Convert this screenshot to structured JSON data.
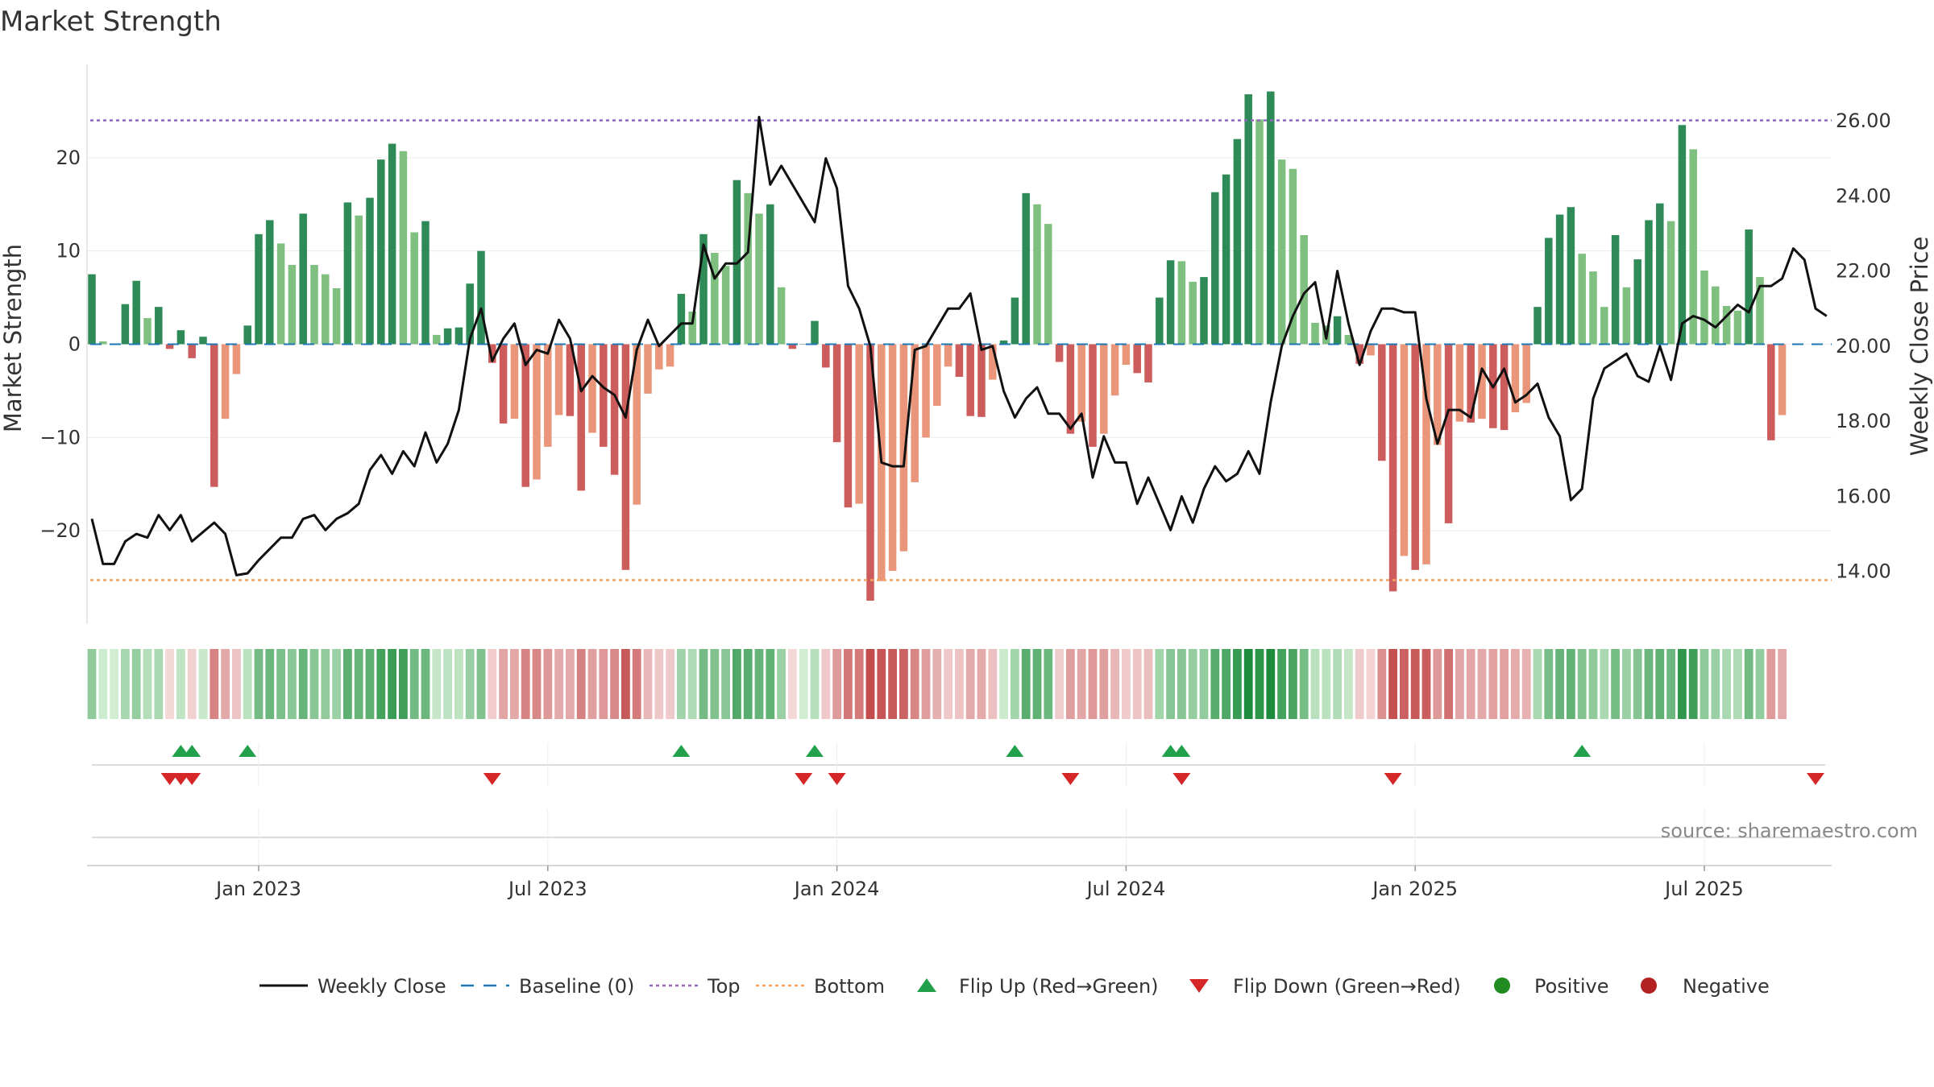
{
  "chart_data": {
    "type": "bar",
    "title": "Market Strength",
    "ylabel": "Market Strength",
    "y2label": "Weekly Close Price",
    "ylim": [
      -30,
      30
    ],
    "y2lim": [
      12.6,
      27.5
    ],
    "yticks": [
      -20,
      -10,
      0,
      10,
      20
    ],
    "yticklabels": [
      "−20",
      "−10",
      "0",
      "10",
      "20"
    ],
    "y2ticks": [
      14,
      16,
      18,
      20,
      22,
      24,
      26
    ],
    "y2ticklabels": [
      "14.00",
      "16.00",
      "18.00",
      "20.00",
      "22.00",
      "24.00",
      "26.00"
    ],
    "top_line": 24,
    "bottom_line": -25.3,
    "xticklabels": [
      "Jan 2023",
      "Jul 2023",
      "Jan 2024",
      "Jul 2024",
      "Jan 2025",
      "Jul 2025"
    ],
    "xtick_weeks": [
      15,
      41,
      67,
      93,
      119,
      145
    ],
    "strength": [
      7.5,
      0.3,
      0,
      4.3,
      6.8,
      2.8,
      4,
      -0.5,
      1.5,
      -1.5,
      0.8,
      -15.3,
      -8,
      -3.2,
      2,
      11.8,
      13.3,
      10.8,
      8.5,
      14,
      8.5,
      7.5,
      6,
      15.2,
      13.8,
      15.7,
      19.8,
      21.5,
      20.7,
      12,
      13.2,
      1,
      1.7,
      1.8,
      6.5,
      10,
      -2,
      -8.5,
      -8,
      -15.3,
      -14.5,
      -11,
      -7.6,
      -7.7,
      -15.7,
      -9.5,
      -11,
      -14,
      -24.2,
      -17.2,
      -5.3,
      -2.7,
      -2.4,
      5.4,
      3.5,
      11.8,
      9.8,
      8.4,
      17.6,
      16.2,
      14,
      15,
      6.1,
      -0.5,
      0,
      2.5,
      -2.5,
      -10.5,
      -17.5,
      -17.1,
      -27.5,
      -25.4,
      -24.3,
      -22.2,
      -14.8,
      -10,
      -6.6,
      -2.4,
      -3.5,
      -7.7,
      -7.8,
      -3.8,
      0.4,
      5,
      16.2,
      15,
      12.9,
      -1.9,
      -9.6,
      -8.3,
      -11,
      -9.6,
      -5.5,
      -2.2,
      -3.1,
      -4.1,
      5,
      9,
      8.9,
      6.7,
      7.2,
      16.3,
      18.2,
      22,
      26.8,
      24.1,
      27.1,
      19.8,
      18.8,
      11.7,
      2.3,
      2,
      3,
      1,
      -2.1,
      -1.2,
      -12.5,
      -26.5,
      -22.7,
      -24.2,
      -23.6,
      -10.8,
      -19.2,
      -8.3,
      -8.4,
      -8,
      -9,
      -9.2,
      -7.3,
      -6.3,
      4,
      11.4,
      13.9,
      14.7,
      9.7,
      7.8,
      4,
      11.7,
      6.1,
      9.1,
      13.3,
      15.1,
      13.2,
      23.5,
      20.9,
      7.9,
      6.2,
      4.1,
      3.6,
      12.3,
      7.2,
      -10.3,
      -7.6
    ],
    "close": [
      15.4,
      14.2,
      14.2,
      14.8,
      15,
      14.9,
      15.5,
      15.1,
      15.5,
      14.8,
      15.05,
      15.3,
      15,
      13.9,
      13.95,
      14.3,
      14.6,
      14.9,
      14.9,
      15.4,
      15.5,
      15.1,
      15.4,
      15.55,
      15.8,
      16.7,
      17.1,
      16.6,
      17.2,
      16.8,
      17.7,
      16.9,
      17.4,
      18.3,
      20.2,
      21,
      19.6,
      20.2,
      20.6,
      19.5,
      19.9,
      19.8,
      20.7,
      20.2,
      18.8,
      19.2,
      18.9,
      18.7,
      18.1,
      19.9,
      20.7,
      20,
      20.3,
      20.6,
      20.6,
      22.7,
      21.8,
      22.2,
      22.2,
      22.5,
      26.1,
      24.3,
      24.8,
      24.3,
      23.8,
      23.3,
      25,
      24.2,
      21.6,
      21,
      20,
      16.9,
      16.8,
      16.8,
      19.9,
      20,
      20.5,
      21,
      21,
      21.4,
      19.9,
      20,
      18.8,
      18.1,
      18.6,
      18.9,
      18.2,
      18.2,
      17.8,
      18.2,
      16.5,
      17.6,
      16.9,
      16.9,
      15.8,
      16.5,
      15.8,
      15.1,
      16,
      15.3,
      16.2,
      16.8,
      16.4,
      16.6,
      17.2,
      16.6,
      18.5,
      20,
      20.8,
      21.4,
      21.7,
      20.2,
      22,
      20.6,
      19.5,
      20.4,
      21,
      21,
      20.9,
      20.9,
      18.6,
      17.4,
      18.3,
      18.3,
      18.1,
      19.4,
      18.9,
      19.4,
      18.5,
      18.7,
      19,
      18.1,
      17.6,
      15.9,
      16.2,
      18.6,
      19.4,
      19.6,
      19.8,
      19.2,
      19.05,
      20,
      19.1,
      20.6,
      20.8,
      20.7,
      20.5,
      20.8,
      21.1,
      20.9,
      21.6,
      21.6,
      21.8,
      22.6,
      22.3,
      21,
      20.8
    ],
    "flip_up_weeks": [
      8,
      9,
      14,
      53,
      65,
      83,
      97,
      98,
      134
    ],
    "flip_down_weeks": [
      7,
      8,
      9,
      36,
      64,
      67,
      88,
      98,
      117,
      155
    ],
    "legend": [
      "Weekly Close",
      "Baseline (0)",
      "Top",
      "Bottom",
      "Flip Up (Red→Green)",
      "Flip Down (Green→Red)",
      "Positive",
      "Negative"
    ],
    "colors": {
      "strong_pos": "#2e8b57",
      "weak_pos": "#7fbf7f",
      "strong_neg": "#cd5c5c",
      "weak_neg": "#e9967a",
      "close": "#111111",
      "baseline": "#1f77b4",
      "top": "#9467bd",
      "bottom": "#f4a460",
      "flip_up": "#22a04b",
      "flip_down": "#d62728",
      "positive_dot": "#228b22",
      "negative_dot": "#b22222"
    }
  },
  "source_text": "source: sharemaestro.com"
}
